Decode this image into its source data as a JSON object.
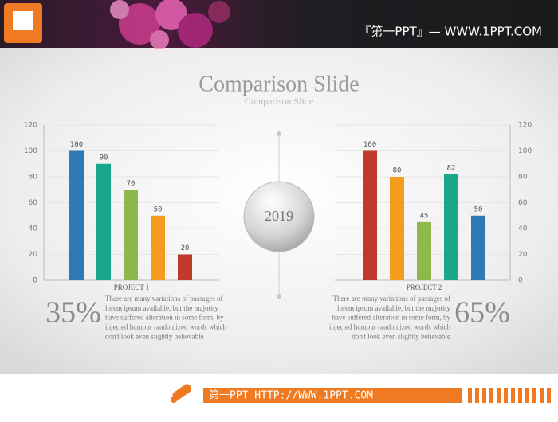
{
  "header": {
    "brand": "『第一PPT』— WWW.1PPT.COM"
  },
  "title": "Comparison Slide",
  "subtitle": "Comparison Slide",
  "year": "2019",
  "footer": {
    "text": "第一PPT HTTP://WWW.1PPT.COM"
  },
  "chart_data": [
    {
      "type": "bar",
      "xlabel": "PROJECT 1",
      "categories": [
        null,
        null,
        null,
        null,
        null
      ],
      "values": [
        100,
        90,
        70,
        50,
        20
      ],
      "colors": [
        "#2c7bb6",
        "#1aa68a",
        "#8db94c",
        "#f39c1d",
        "#c0392b"
      ],
      "ylim": [
        0,
        120
      ],
      "yticks": [
        0,
        20,
        40,
        60,
        80,
        100,
        120
      ],
      "grid": true,
      "yaxis_side": "left",
      "stat": "35%",
      "description": [
        "There are many variations of passages of",
        "lorem ipsum available, but the majority",
        "have suffered alteration in some form, by",
        "injected humour randomized words which",
        "don't look even slightly believable"
      ]
    },
    {
      "type": "bar",
      "xlabel": "PROJECT 2",
      "categories": [
        null,
        null,
        null,
        null,
        null
      ],
      "values": [
        100,
        80,
        45,
        82,
        50
      ],
      "colors": [
        "#c0392b",
        "#f39c1d",
        "#8db94c",
        "#1aa68a",
        "#2c7bb6"
      ],
      "ylim": [
        0,
        120
      ],
      "yticks": [
        0,
        20,
        40,
        60,
        80,
        100,
        120
      ],
      "grid": true,
      "yaxis_side": "right",
      "stat": "65%",
      "description": [
        "There are many variations of passages of",
        "lorem ipsum available, but the majority",
        "have suffered alteration in some form, by",
        "injected humour randomized words which",
        "don't look even slightly believable"
      ]
    }
  ]
}
